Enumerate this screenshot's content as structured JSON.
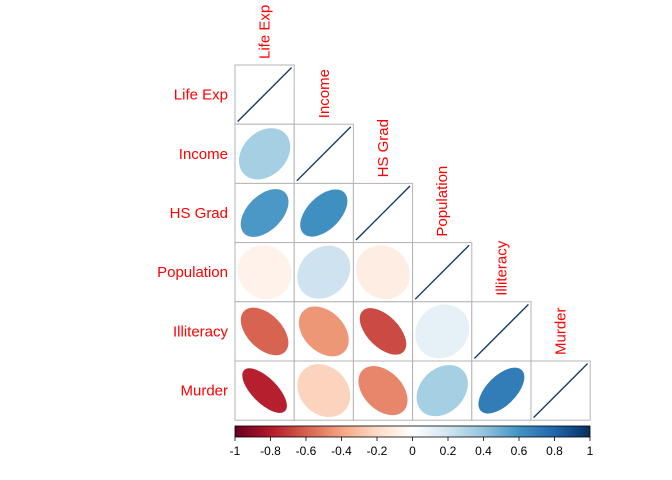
{
  "chart_data": {
    "type": "heatmap",
    "style": "correlation-ellipse-lower",
    "variables": [
      "Life Exp",
      "Income",
      "HS Grad",
      "Population",
      "Illiteracy",
      "Murder"
    ],
    "correlations": [
      [
        1.0,
        0.34,
        0.58,
        -0.07,
        -0.59,
        -0.78
      ],
      [
        0.34,
        1.0,
        0.62,
        0.21,
        -0.44,
        -0.23
      ],
      [
        0.58,
        0.62,
        1.0,
        -0.1,
        -0.66,
        -0.49
      ],
      [
        -0.07,
        0.21,
        -0.1,
        1.0,
        0.11,
        0.34
      ],
      [
        -0.59,
        -0.44,
        -0.66,
        0.11,
        1.0,
        0.7
      ],
      [
        -0.78,
        -0.23,
        -0.49,
        0.34,
        0.7,
        1.0
      ]
    ],
    "colorbar": {
      "range": [
        -1,
        1
      ],
      "ticks": [
        "-1",
        "-0.8",
        "-0.6",
        "-0.4",
        "-0.2",
        "0",
        "0.2",
        "0.4",
        "0.6",
        "0.8",
        "1"
      ],
      "colors": {
        "negative_end": "#67001f",
        "neutral": "#ffffff",
        "positive_end": "#053061"
      }
    },
    "label_color": "#ff0000",
    "grid": true
  }
}
